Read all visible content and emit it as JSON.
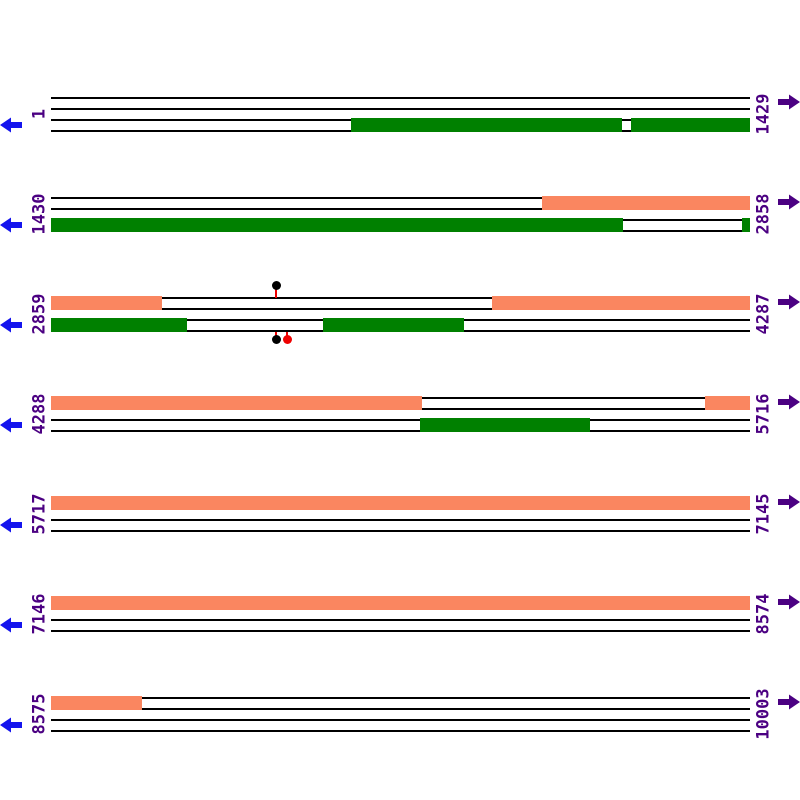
{
  "figure": {
    "type": "linear-sequence-map",
    "track_lines_per_row": 4,
    "colors": {
      "orange": "#FA8660",
      "green": "#008000",
      "label": "#4B0082",
      "left_arrow": "#1414EE",
      "right_arrow": "#4B0082",
      "red": "#EE0000",
      "black": "#000000",
      "line": "#000000"
    },
    "rows": [
      {
        "start": "1",
        "end": "1429",
        "features": [
          {
            "strand": "reverse",
            "color": "green",
            "start_pct": 42.9,
            "end_pct": 81.7
          },
          {
            "strand": "reverse",
            "color": "green",
            "start_pct": 83.0,
            "end_pct": 100
          }
        ],
        "markers": []
      },
      {
        "start": "1430",
        "end": "2858",
        "features": [
          {
            "strand": "forward",
            "color": "orange",
            "start_pct": 70.2,
            "end_pct": 100
          },
          {
            "strand": "reverse",
            "color": "green",
            "start_pct": 0,
            "end_pct": 81.8
          },
          {
            "strand": "reverse",
            "color": "green",
            "start_pct": 98.9,
            "end_pct": 100
          }
        ],
        "markers": []
      },
      {
        "start": "2859",
        "end": "4287",
        "features": [
          {
            "strand": "forward",
            "color": "orange",
            "start_pct": 0,
            "end_pct": 15.9
          },
          {
            "strand": "forward",
            "color": "orange",
            "start_pct": 63.1,
            "end_pct": 100
          },
          {
            "strand": "reverse",
            "color": "green",
            "start_pct": 0,
            "end_pct": 19.5
          },
          {
            "strand": "reverse",
            "color": "green",
            "start_pct": 38.9,
            "end_pct": 59.1
          }
        ],
        "markers": [
          {
            "side": "above",
            "position_pct": 32.2,
            "dot_color": "black",
            "stem_color": "red"
          },
          {
            "side": "below",
            "position_pct": 32.2,
            "dot_color": "black",
            "stem_color": "red"
          },
          {
            "side": "below",
            "position_pct": 33.8,
            "dot_color": "red",
            "stem_color": "red"
          }
        ]
      },
      {
        "start": "4288",
        "end": "5716",
        "features": [
          {
            "strand": "forward",
            "color": "orange",
            "start_pct": 0,
            "end_pct": 53.1
          },
          {
            "strand": "forward",
            "color": "orange",
            "start_pct": 93.6,
            "end_pct": 100
          },
          {
            "strand": "reverse",
            "color": "green",
            "start_pct": 52.8,
            "end_pct": 77.1
          }
        ],
        "markers": []
      },
      {
        "start": "5717",
        "end": "7145",
        "features": [
          {
            "strand": "forward",
            "color": "orange",
            "start_pct": 0,
            "end_pct": 100
          }
        ],
        "markers": []
      },
      {
        "start": "7146",
        "end": "8574",
        "features": [
          {
            "strand": "forward",
            "color": "orange",
            "start_pct": 0,
            "end_pct": 100
          }
        ],
        "markers": []
      },
      {
        "start": "8575",
        "end": "10003",
        "features": [
          {
            "strand": "forward",
            "color": "orange",
            "start_pct": 0,
            "end_pct": 13.0
          }
        ],
        "markers": []
      }
    ]
  }
}
